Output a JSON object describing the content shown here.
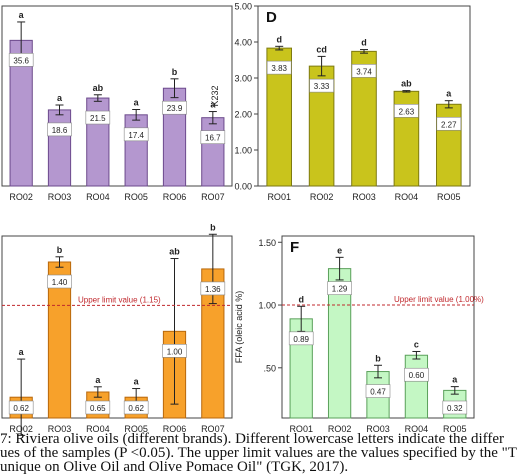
{
  "chart_data": [
    {
      "panel_letter": "",
      "type": "bar",
      "categories": [
        "RO02",
        "RO03",
        "RO04",
        "RO05",
        "RO06",
        "RO07"
      ],
      "values": [
        35.6,
        18.6,
        21.5,
        17.4,
        23.9,
        16.7
      ],
      "errors": [
        4.5,
        1.2,
        0.8,
        1.3,
        2.3,
        1.5
      ],
      "value_labels": [
        "35.6",
        "18.6",
        "21.5",
        "17.4",
        "23.9",
        "16.7"
      ],
      "letters": [
        "a",
        "a",
        "ab",
        "a",
        "b",
        "a"
      ],
      "ylim": [
        0,
        44
      ],
      "yticks": [],
      "ylabel": "",
      "bar_color": "#b497cf",
      "bar_edge": "#6c4a8c",
      "limit": null
    },
    {
      "panel_letter": "D",
      "type": "bar",
      "categories": [
        "RO01",
        "RO02",
        "RO03",
        "RO04",
        "RO05"
      ],
      "values": [
        3.83,
        3.33,
        3.74,
        2.63,
        2.27
      ],
      "errors": [
        0.05,
        0.27,
        0.05,
        0.02,
        0.1
      ],
      "value_labels": [
        "3.83",
        "3.33",
        "3.74",
        "2.63",
        "2.27"
      ],
      "letters": [
        "d",
        "cd",
        "d",
        "ab",
        "a"
      ],
      "ylim": [
        0,
        5
      ],
      "yticks": [
        "0.00",
        "1.00",
        "2.00",
        "3.00",
        "4.00",
        "5.00"
      ],
      "ylabel": "K232",
      "bar_color": "#c9c41c",
      "bar_edge": "#7d7a10",
      "limit": null
    },
    {
      "panel_letter": "",
      "type": "bar",
      "categories": [
        "RO02",
        "RO03",
        "RO04",
        "RO05",
        "RO06",
        "RO07"
      ],
      "values": [
        0.62,
        1.4,
        0.65,
        0.62,
        1.0,
        1.36
      ],
      "errors": [
        0.22,
        0.03,
        0.03,
        0.05,
        0.42,
        0.2
      ],
      "value_labels": [
        "0.62",
        "1.40",
        "0.65",
        "0.62",
        "1.00",
        "1.36"
      ],
      "letters": [
        "a",
        "b",
        "a",
        "a",
        "ab",
        "b"
      ],
      "ylim": [
        0.5,
        1.55
      ],
      "yticks": [],
      "ylabel": "",
      "bar_color": "#f7a12b",
      "bar_edge": "#b8680c",
      "limit": {
        "value": 1.15,
        "label": "Upper limit value (1.15)"
      }
    },
    {
      "panel_letter": "F",
      "type": "bar",
      "categories": [
        "RO01",
        "RO02",
        "RO03",
        "RO04",
        "RO05"
      ],
      "values": [
        0.89,
        1.29,
        0.47,
        0.6,
        0.32
      ],
      "errors": [
        0.1,
        0.09,
        0.05,
        0.03,
        0.03
      ],
      "value_labels": [
        "0.89",
        "1.29",
        "0.47",
        "0.60",
        "0.32"
      ],
      "letters": [
        "d",
        "e",
        "b",
        "c",
        "a"
      ],
      "ylim": [
        0.1,
        1.55
      ],
      "yticks": [
        ".50",
        "1.00",
        "1.50"
      ],
      "ylabel": "FFA (oleic acid %)",
      "bar_color": "#c4f7c4",
      "bar_edge": "#5aa05a",
      "limit": {
        "value": 1.0,
        "label": "Upper limit value (1.00%)"
      }
    }
  ],
  "caption": {
    "line1": "7: Riviera olive oils (different brands). Different lowercase letters indicate the differ",
    "line2": "ues of the samples (P <0.05). The upper limit values are the values specified by the \"T",
    "line3": "unique on Olive Oil and Olive Pomace Oil\" (TGK, 2017)."
  }
}
